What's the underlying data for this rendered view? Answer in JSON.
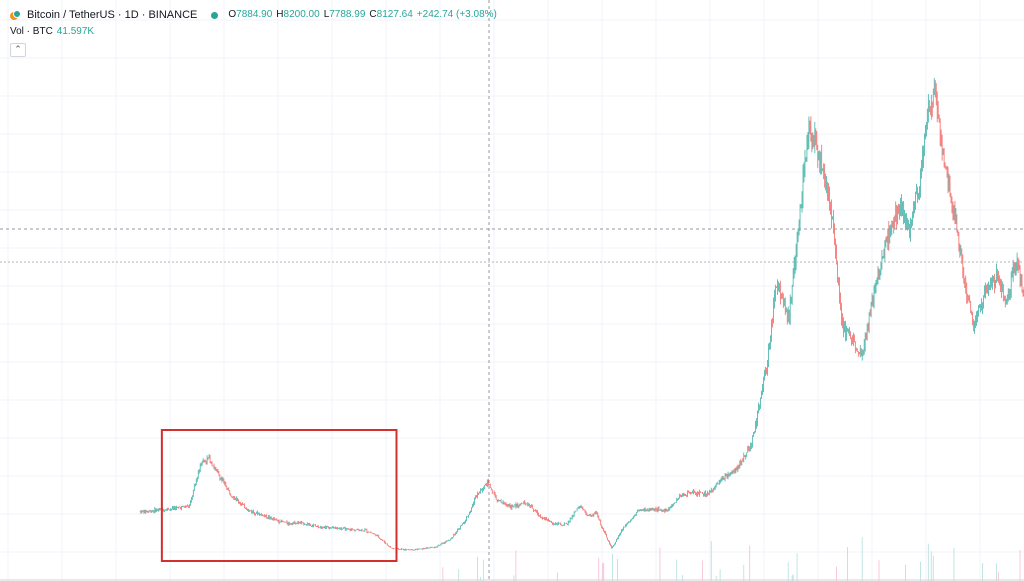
{
  "legend": {
    "symbol": "Bitcoin / TetherUS · 1D · BINANCE",
    "ohlc": [
      {
        "k": "O",
        "v": "7884.90"
      },
      {
        "k": "H",
        "v": "8200.00"
      },
      {
        "k": "L",
        "v": "7788.99"
      },
      {
        "k": "C",
        "v": "8127.64"
      }
    ],
    "change": "+242.74 (+3.08%)",
    "volume_label": "Vol · BTC",
    "volume_value": "41.597K",
    "collapse_glyph": "⌃"
  },
  "icons": {
    "symbol": "bitcoin-tether-icon",
    "status": "market-open-dot-icon"
  },
  "colors": {
    "up": "#26a69a",
    "down": "#ef5350",
    "grid": "#f0f3fa",
    "crosshair": "#9598a1",
    "highlight": "#d32f2f"
  },
  "chart_data": {
    "type": "candlestick",
    "series": [
      {
        "name": "Bitcoin / TetherUS",
        "price_path": [
          [
            0,
            9000
          ],
          [
            30,
            9400
          ],
          [
            50,
            9800
          ],
          [
            62,
            16000
          ],
          [
            70,
            16500
          ],
          [
            78,
            14500
          ],
          [
            92,
            11500
          ],
          [
            110,
            9200
          ],
          [
            125,
            8500
          ],
          [
            138,
            7800
          ],
          [
            150,
            7400
          ],
          [
            160,
            7500
          ],
          [
            172,
            7200
          ],
          [
            178,
            7000
          ],
          [
            188,
            6900
          ],
          [
            200,
            6700
          ],
          [
            215,
            6500
          ],
          [
            228,
            6450
          ],
          [
            240,
            5700
          ],
          [
            255,
            3900
          ],
          [
            270,
            3700
          ],
          [
            285,
            3800
          ],
          [
            300,
            4100
          ],
          [
            315,
            5200
          ],
          [
            330,
            7800
          ],
          [
            342,
            11500
          ],
          [
            352,
            13200
          ],
          [
            362,
            10500
          ],
          [
            378,
            9700
          ],
          [
            392,
            10300
          ],
          [
            405,
            8500
          ],
          [
            420,
            7300
          ],
          [
            432,
            7200
          ],
          [
            445,
            9800
          ],
          [
            455,
            8400
          ],
          [
            462,
            8900
          ],
          [
            470,
            6400
          ],
          [
            478,
            3900
          ],
          [
            490,
            6800
          ],
          [
            505,
            9200
          ],
          [
            520,
            9300
          ],
          [
            535,
            9200
          ],
          [
            548,
            11200
          ],
          [
            560,
            11800
          ],
          [
            575,
            11400
          ],
          [
            590,
            13500
          ],
          [
            605,
            15000
          ],
          [
            620,
            18500
          ],
          [
            635,
            29000
          ],
          [
            645,
            41000
          ],
          [
            658,
            36000
          ],
          [
            667,
            48000
          ],
          [
            678,
            63000
          ],
          [
            690,
            58000
          ],
          [
            702,
            50000
          ],
          [
            712,
            35000
          ],
          [
            722,
            33000
          ],
          [
            732,
            31000
          ],
          [
            742,
            38000
          ],
          [
            755,
            46000
          ],
          [
            770,
            52000
          ],
          [
            780,
            48000
          ],
          [
            790,
            55000
          ],
          [
            798,
            65000
          ],
          [
            806,
            67000
          ],
          [
            815,
            58000
          ],
          [
            825,
            51000
          ],
          [
            835,
            42000
          ],
          [
            845,
            35000
          ],
          [
            857,
            40000
          ],
          [
            868,
            42000
          ],
          [
            878,
            38000
          ],
          [
            888,
            44000
          ],
          [
            896,
            39000
          ]
        ],
        "highlight_range_days": [
          10,
          262
        ]
      }
    ]
  }
}
